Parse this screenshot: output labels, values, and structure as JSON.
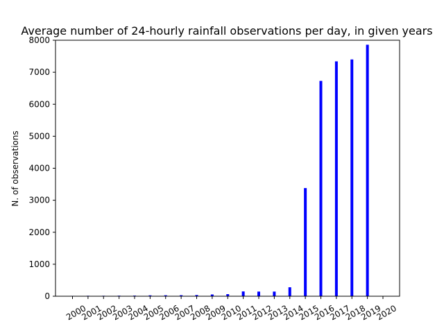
{
  "chart_data": {
    "type": "bar",
    "title": "Average number of 24-hourly rainfall observations per day, in given years",
    "xlabel": "",
    "ylabel": "N. of observations",
    "categories": [
      "2000",
      "2001",
      "2002",
      "2003",
      "2004",
      "2005",
      "2006",
      "2007",
      "2008",
      "2009",
      "2010",
      "2011",
      "2012",
      "2013",
      "2014",
      "2015",
      "2016",
      "2017",
      "2018",
      "2019",
      "2020"
    ],
    "values": [
      12,
      15,
      15,
      18,
      20,
      28,
      30,
      32,
      38,
      55,
      65,
      150,
      145,
      145,
      280,
      3380,
      6730,
      7340,
      7400,
      7860,
      0
    ],
    "ylim": [
      0,
      8000
    ],
    "yticks": [
      0,
      1000,
      2000,
      3000,
      4000,
      5000,
      6000,
      7000,
      8000
    ],
    "bar_color": "#0000ff",
    "grid": false,
    "legend": "none"
  }
}
